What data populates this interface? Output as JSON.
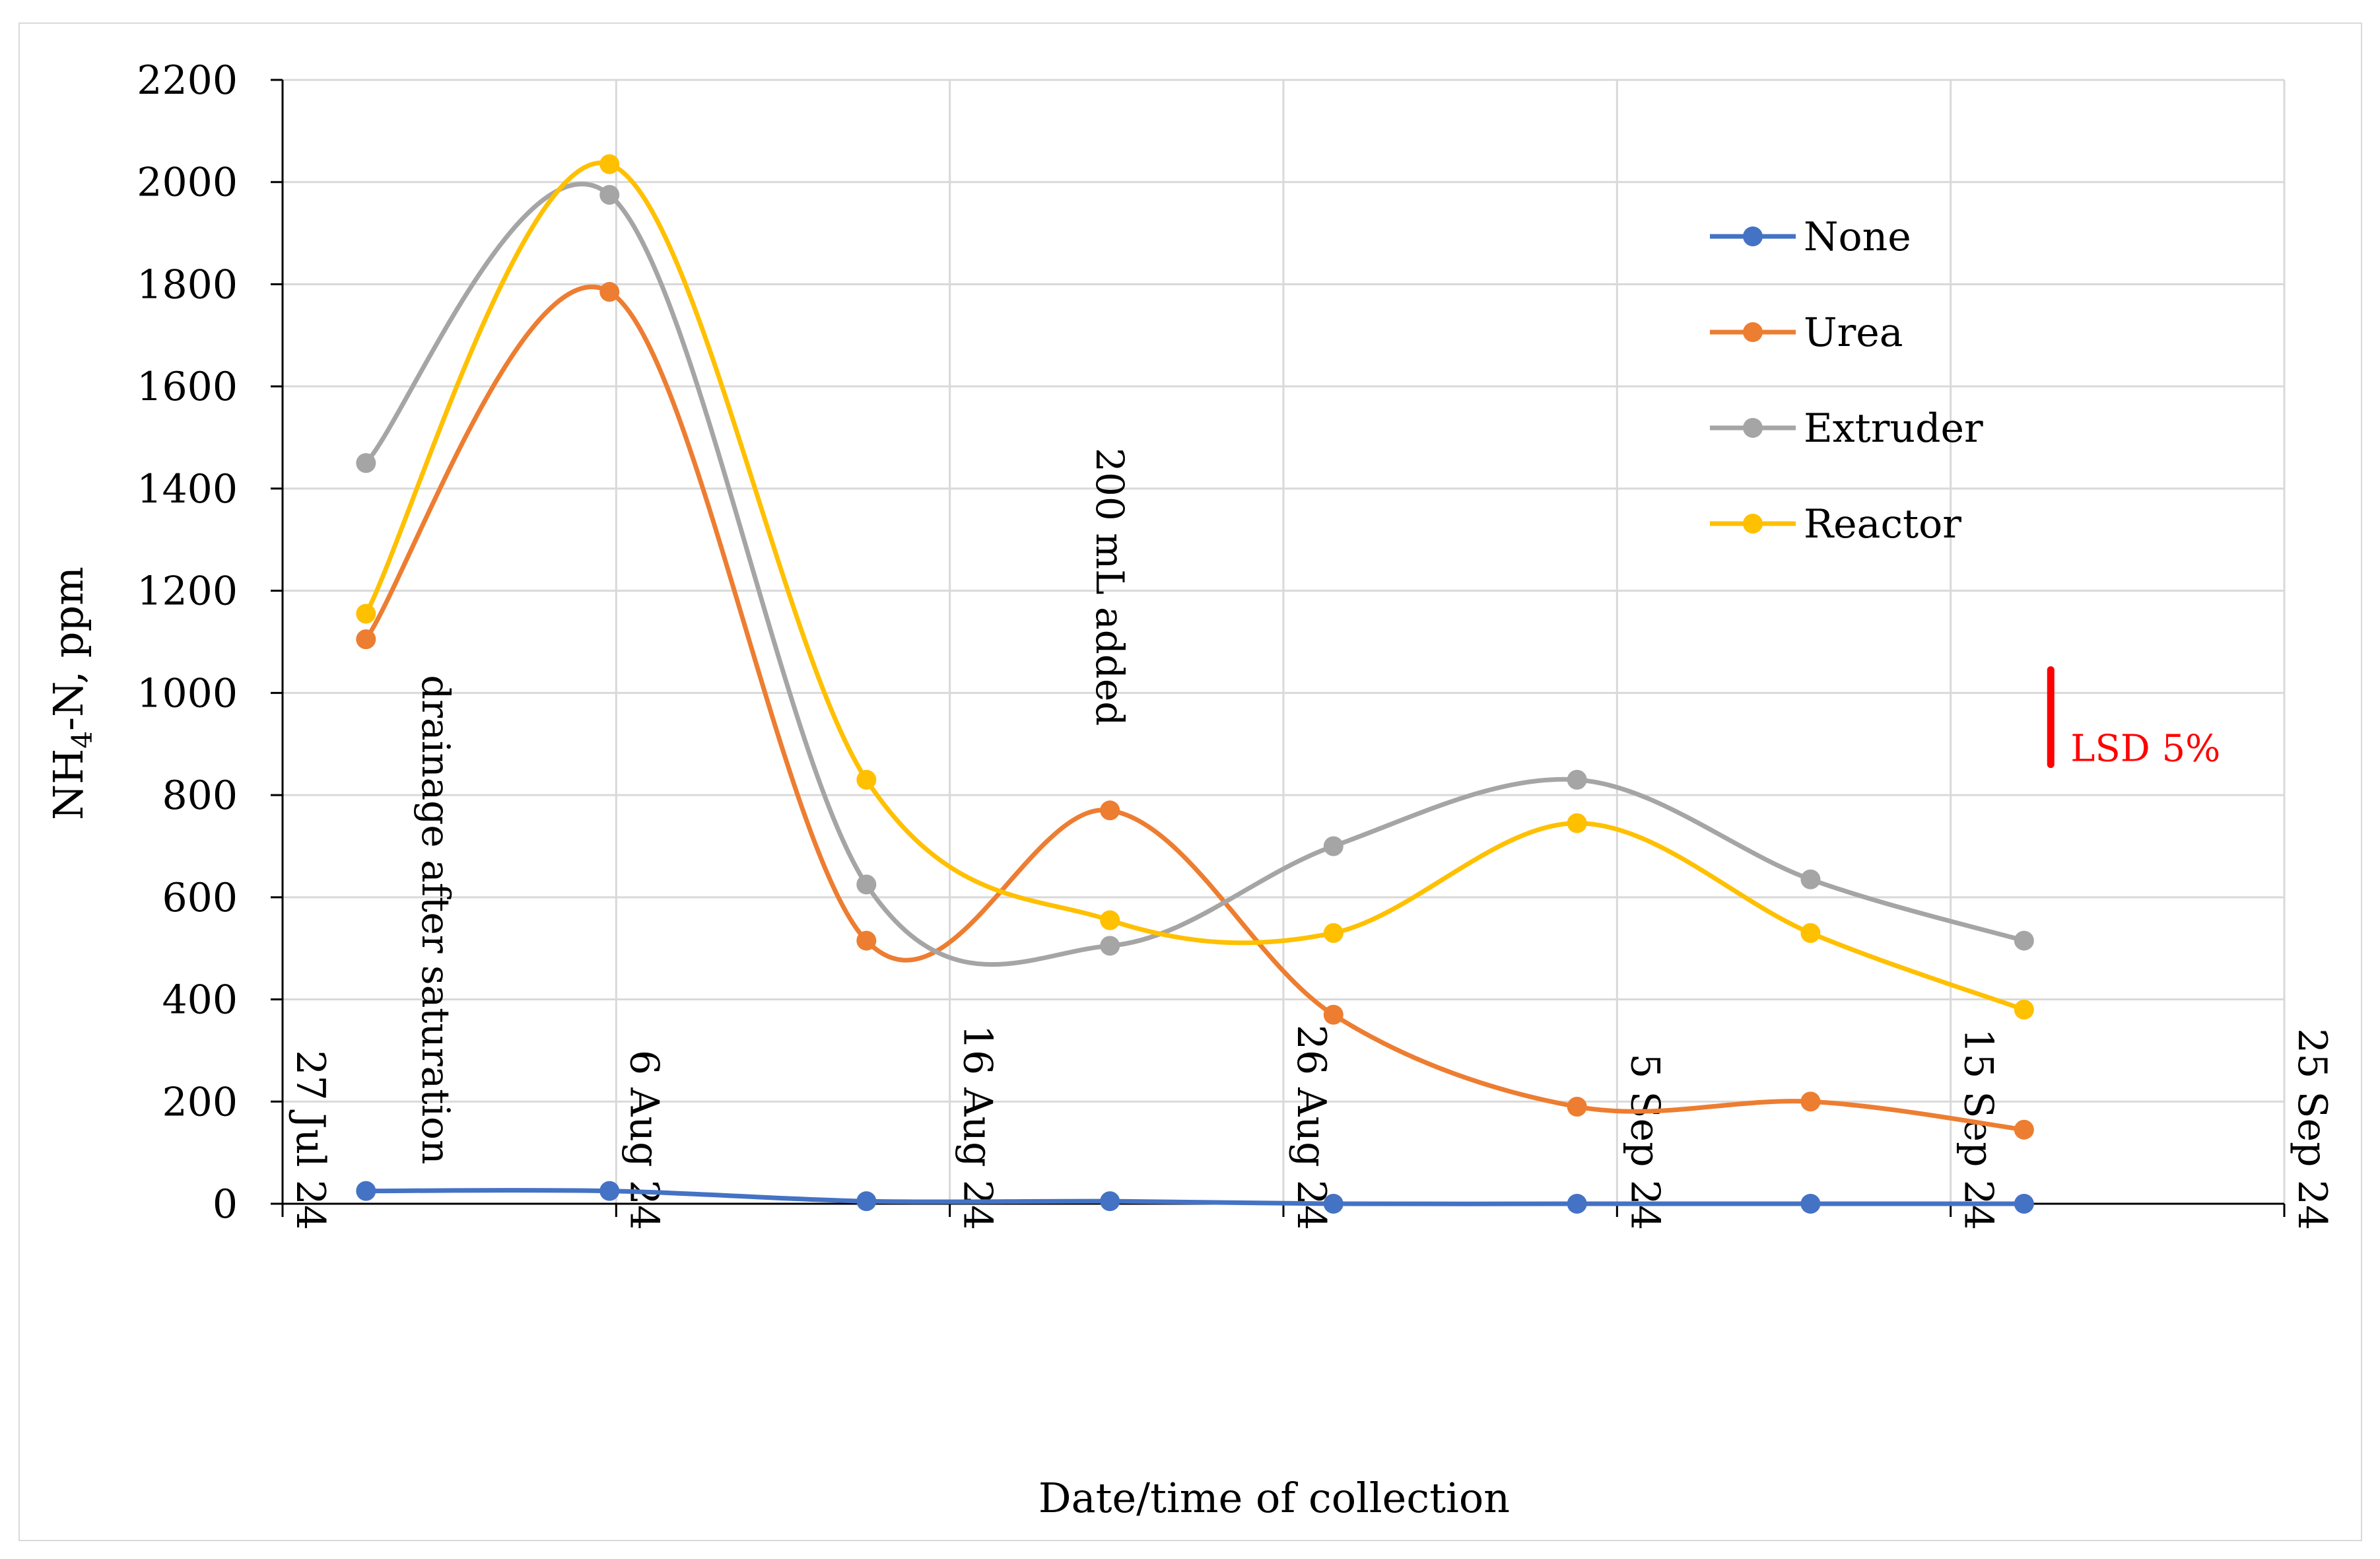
{
  "chart_data": {
    "type": "line",
    "title": "",
    "xlabel": "Date/time of collection",
    "ylabel_main": "NH",
    "ylabel_sub": "4",
    "ylabel_rest": "-N, ppm",
    "xlim": [
      0,
      60
    ],
    "ylim": [
      0,
      2200
    ],
    "x_ticks": [
      {
        "value": 0,
        "label": "27 Jul 24"
      },
      {
        "value": 10,
        "label": "6 Aug 24"
      },
      {
        "value": 20,
        "label": "16 Aug 24"
      },
      {
        "value": 30,
        "label": "26 Aug 24"
      },
      {
        "value": 40,
        "label": "5 Sep 24"
      },
      {
        "value": 50,
        "label": "15 Sep 24"
      },
      {
        "value": 60,
        "label": "25 Sep 24"
      }
    ],
    "y_ticks": [
      0,
      200,
      400,
      600,
      800,
      1000,
      1200,
      1400,
      1600,
      1800,
      2000,
      2200
    ],
    "y_tick_labels": [
      "0",
      "200",
      "400",
      "600",
      "800",
      "1000",
      "1200",
      "1400",
      "1600",
      "1800",
      "2000",
      "2200"
    ],
    "grid": true,
    "legend_position": "top-right",
    "series": [
      {
        "name": "None",
        "color": "#4472C4",
        "x": [
          2.5,
          9.8,
          17.5,
          24.8,
          31.5,
          38.8,
          45.8,
          52.2
        ],
        "y": [
          25,
          25,
          5,
          5,
          0,
          0,
          0,
          0
        ]
      },
      {
        "name": "Urea",
        "color": "#ED7D31",
        "x": [
          2.5,
          9.8,
          17.5,
          24.8,
          31.5,
          38.8,
          45.8,
          52.2
        ],
        "y": [
          1105,
          1785,
          515,
          770,
          370,
          190,
          200,
          145
        ]
      },
      {
        "name": "Extruder",
        "color": "#A5A5A5",
        "x": [
          2.5,
          9.8,
          17.5,
          24.8,
          31.5,
          38.8,
          45.8,
          52.2
        ],
        "y": [
          1450,
          1975,
          625,
          505,
          700,
          830,
          635,
          515
        ]
      },
      {
        "name": "Reactor",
        "color": "#FFC000",
        "x": [
          2.5,
          9.8,
          17.5,
          24.8,
          31.5,
          38.8,
          45.8,
          52.2
        ],
        "y": [
          1155,
          2035,
          830,
          555,
          530,
          745,
          530,
          380
        ]
      }
    ],
    "annotations": [
      {
        "text": "drainage after saturation",
        "x": 4.2,
        "y": 1035,
        "orientation": "vertical"
      },
      {
        "text": "200 mL added",
        "x": 24.4,
        "y": 1480,
        "orientation": "vertical"
      }
    ],
    "lsd": {
      "label": "LSD 5%",
      "color": "#FF0000",
      "x": 53,
      "y_low": 860,
      "y_high": 1045
    }
  }
}
